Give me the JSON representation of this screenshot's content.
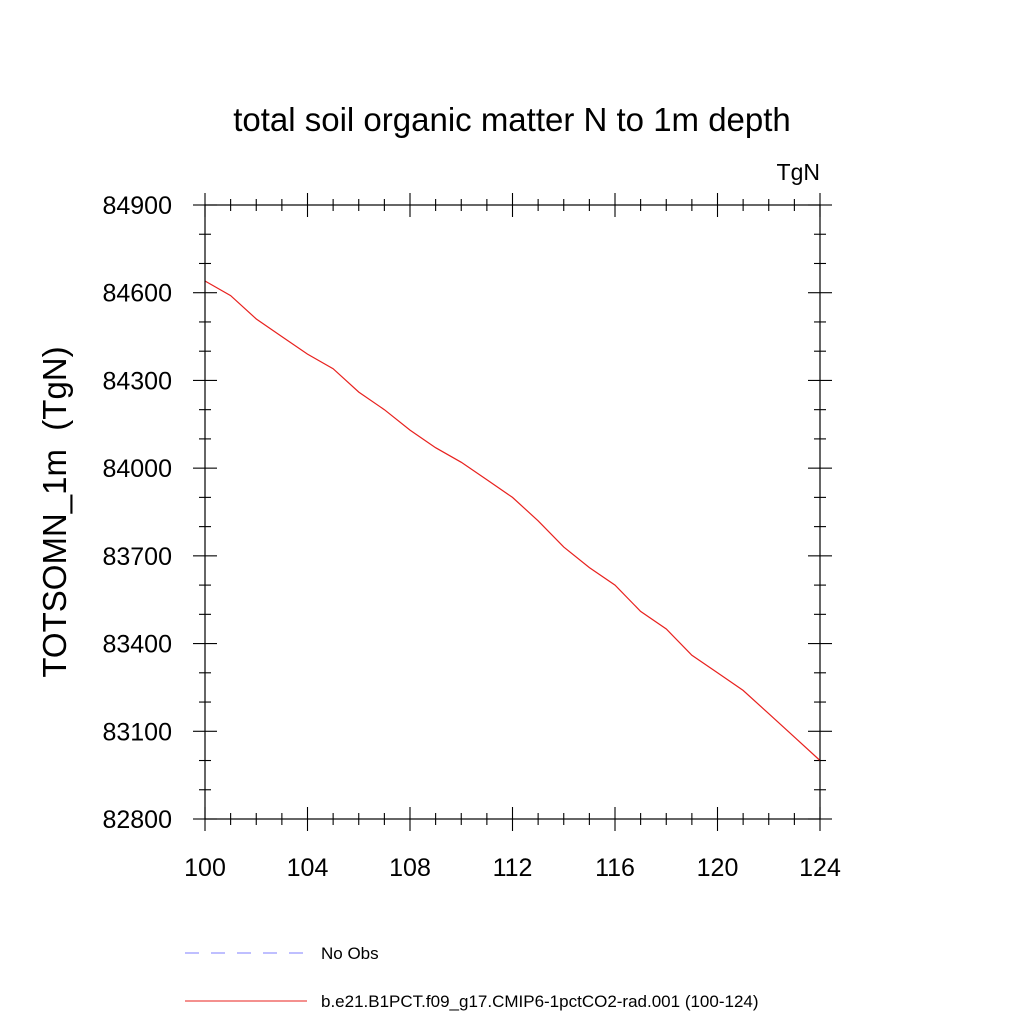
{
  "chart_data": {
    "type": "line",
    "title": "total soil organic matter N to 1m depth",
    "units_label": "TgN",
    "ylabel": "TOTSOMN_1m  (TgN)",
    "xlabel": "",
    "xlim": [
      100,
      124
    ],
    "ylim": [
      82800,
      84900
    ],
    "x_ticks": [
      100,
      104,
      108,
      112,
      116,
      120,
      124
    ],
    "x_tick_labels": [
      "100",
      "104",
      "108",
      "112",
      "116",
      "120",
      "124"
    ],
    "y_ticks": [
      82800,
      83100,
      83400,
      83700,
      84000,
      84300,
      84600,
      84900
    ],
    "y_tick_labels": [
      "82800",
      "83100",
      "83400",
      "83700",
      "84000",
      "84300",
      "84600",
      "84900"
    ],
    "grid": false,
    "legend_position": "bottom",
    "legend": [
      {
        "label": "No Obs",
        "color": "#7f7fff",
        "style": "dashed"
      },
      {
        "label": "b.e21.B1PCT.f09_g17.CMIP6-1pctCO2-rad.001 (100-124)",
        "color": "#e8211e",
        "style": "solid"
      }
    ],
    "series": [
      {
        "name": "b.e21.B1PCT.f09_g17.CMIP6-1pctCO2-rad.001 (100-124)",
        "color": "#e8211e",
        "x": [
          100,
          101,
          102,
          103,
          104,
          105,
          106,
          107,
          108,
          109,
          110,
          111,
          112,
          113,
          114,
          115,
          116,
          117,
          118,
          119,
          120,
          121,
          122,
          123,
          124
        ],
        "y": [
          84640,
          84590,
          84510,
          84450,
          84390,
          84340,
          84260,
          84200,
          84130,
          84070,
          84020,
          83960,
          83900,
          83820,
          83730,
          83660,
          83600,
          83510,
          83450,
          83360,
          83300,
          83240,
          83160,
          83080,
          83000
        ]
      }
    ]
  }
}
